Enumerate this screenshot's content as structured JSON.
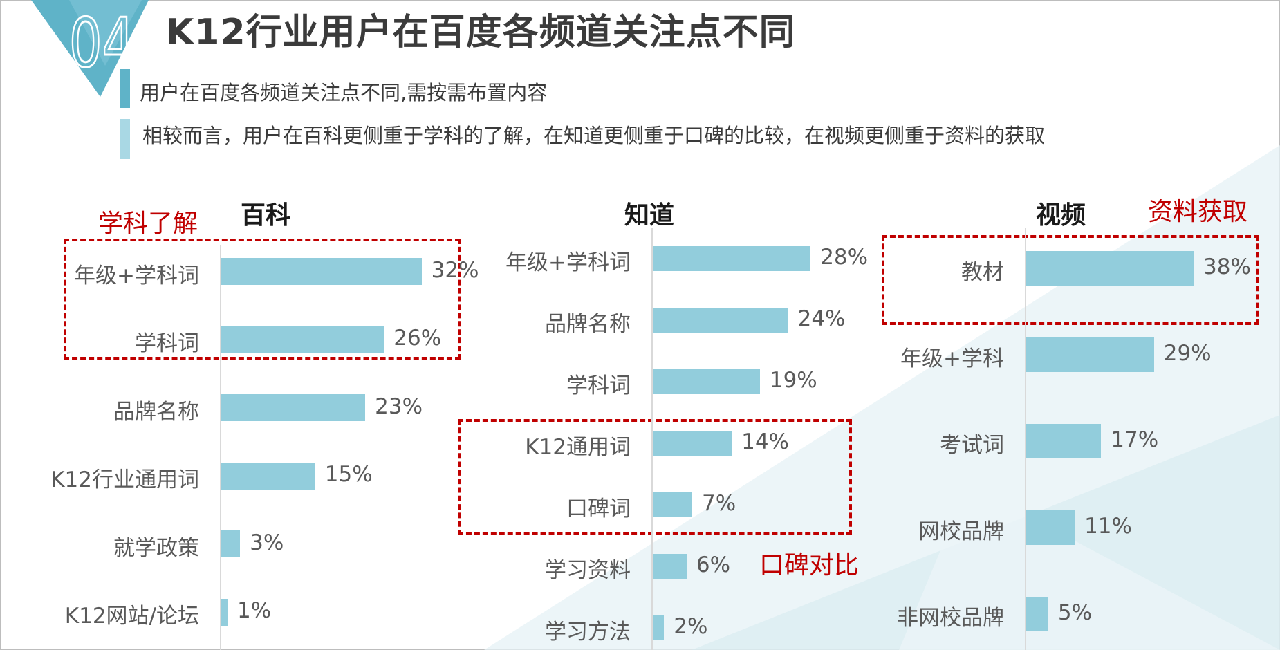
{
  "section_number": "04",
  "title": "K12行业用户在百度各频道关注点不同",
  "subtitles": [
    "用户在百度各频道关注点不同,需按需布置内容",
    "相较而言，用户在百科更侧重于学科的了解，在知道更侧重于口碑的比较，在视频更侧重于资料的获取"
  ],
  "colors": {
    "bar": "#92cddc",
    "callout": "#c00000",
    "accent": "#5fb3c8",
    "accent_light": "#a9d8e4"
  },
  "chart_data": [
    {
      "type": "bar",
      "orientation": "horizontal",
      "title": "百科",
      "callout": "学科了解",
      "categories": [
        "年级+学科词",
        "学科词",
        "品牌名称",
        "K12行业通用词",
        "就学政策",
        "K12网站/论坛"
      ],
      "values": [
        32,
        26,
        23,
        15,
        3,
        1
      ],
      "value_labels": [
        "32%",
        "26%",
        "23%",
        "15%",
        "3%",
        "1%"
      ],
      "highlight": [
        "年级+学科词",
        "学科词"
      ]
    },
    {
      "type": "bar",
      "orientation": "horizontal",
      "title": "知道",
      "callout": "口碑对比",
      "categories": [
        "年级+学科词",
        "品牌名称",
        "学科词",
        "K12通用词",
        "口碑词",
        "学习资料",
        "学习方法"
      ],
      "values": [
        28,
        24,
        19,
        14,
        7,
        6,
        2
      ],
      "value_labels": [
        "28%",
        "24%",
        "19%",
        "14%",
        "7%",
        "6%",
        "2%"
      ],
      "highlight": [
        "K12通用词",
        "口碑词"
      ]
    },
    {
      "type": "bar",
      "orientation": "horizontal",
      "title": "视频",
      "callout": "资料获取",
      "categories": [
        "教材",
        "年级+学科",
        "考试词",
        "网校品牌",
        "非网校品牌"
      ],
      "values": [
        38,
        29,
        17,
        11,
        5
      ],
      "value_labels": [
        "38%",
        "29%",
        "17%",
        "11%",
        "5%"
      ],
      "highlight": [
        "教材"
      ]
    }
  ]
}
